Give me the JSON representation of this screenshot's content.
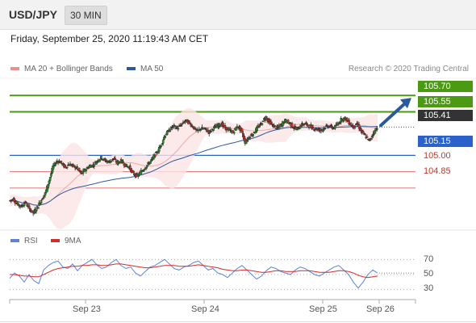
{
  "header": {
    "symbol": "USD/JPY",
    "timeframe": "30 MIN"
  },
  "timestamp": "Friday, September 25, 2020 11:19:43 AM CET",
  "legend": {
    "ma20_label": "MA 20 + Bollinger Bands",
    "ma50_label": "MA 50",
    "credit": "Research © 2020 Trading Central",
    "rsi_label": "RSI",
    "ma9_label": "9MA"
  },
  "colors": {
    "ma20": "#f08c8c",
    "ma50": "#2a5a9e",
    "resistance": "#4c9a13",
    "pivot": "#2a62c9",
    "support": "#e07070",
    "rsi": "#5b84d8",
    "ma9": "#d62b2b"
  },
  "chart_data": [
    {
      "type": "candlestick",
      "title": "USD/JPY",
      "timeframe": "30 MIN",
      "ylim": [
        104.5,
        105.85
      ],
      "x_ticks": [
        "Sep 23",
        "Sep 24",
        "Sep 25",
        "Sep 26"
      ],
      "levels": [
        {
          "value": 105.7,
          "label": "105.70",
          "kind": "resistance"
        },
        {
          "value": 105.55,
          "label": "105.55",
          "kind": "resistance"
        },
        {
          "value": 105.41,
          "label": "105.41",
          "kind": "last"
        },
        {
          "value": 105.15,
          "label": "105.15",
          "kind": "pivot"
        },
        {
          "value": 105.0,
          "label": "105.00",
          "kind": "support"
        },
        {
          "value": 104.85,
          "label": "104.85",
          "kind": "support"
        }
      ],
      "close_path": [
        104.73,
        104.75,
        104.7,
        104.68,
        104.72,
        104.66,
        104.62,
        104.67,
        104.74,
        104.8,
        104.92,
        105.05,
        105.1,
        105.08,
        105.04,
        105.07,
        105.05,
        105.03,
        104.98,
        105.02,
        105.05,
        105.06,
        105.1,
        105.13,
        105.1,
        105.09,
        105.12,
        105.08,
        105.1,
        105.06,
        105.04,
        104.98,
        104.96,
        105.0,
        105.04,
        105.08,
        105.13,
        105.18,
        105.25,
        105.34,
        105.38,
        105.42,
        105.4,
        105.43,
        105.47,
        105.45,
        105.41,
        105.37,
        105.4,
        105.39,
        105.36,
        105.4,
        105.42,
        105.44,
        105.4,
        105.38,
        105.36,
        105.42,
        105.38,
        105.27,
        105.32,
        105.35,
        105.4,
        105.44,
        105.5,
        105.46,
        105.42,
        105.4,
        105.43,
        105.47,
        105.45,
        105.41,
        105.39,
        105.43,
        105.44,
        105.42,
        105.4,
        105.39,
        105.38,
        105.41,
        105.42,
        105.4,
        105.43,
        105.48,
        105.49,
        105.45,
        105.41,
        105.44,
        105.37,
        105.33,
        105.28,
        105.35,
        105.41
      ],
      "forecast_arrow": {
        "from": 105.41,
        "to": 105.7
      }
    },
    {
      "type": "line",
      "title": "RSI",
      "ylim": [
        20,
        80
      ],
      "y_ticks": [
        70,
        50,
        30
      ],
      "series": [
        {
          "name": "RSI",
          "values": [
            45,
            52,
            48,
            40,
            50,
            42,
            38,
            56,
            62,
            66,
            68,
            60,
            58,
            64,
            55,
            62,
            66,
            70,
            63,
            58,
            60,
            66,
            70,
            62,
            58,
            60,
            52,
            48,
            54,
            60,
            62,
            66,
            70,
            64,
            58,
            56,
            60,
            62,
            66,
            68,
            62,
            56,
            58,
            52,
            50,
            46,
            52,
            58,
            62,
            56,
            50,
            44,
            48,
            55,
            60,
            58,
            54,
            52,
            50,
            56,
            60,
            58,
            54,
            50,
            48,
            52,
            56,
            60,
            62,
            56,
            50,
            40,
            32,
            40,
            50,
            56,
            52
          ]
        },
        {
          "name": "9MA",
          "values": [
            50,
            50,
            49,
            48,
            48,
            47,
            47,
            50,
            53,
            56,
            58,
            59,
            60,
            61,
            61,
            62,
            62,
            63,
            63,
            62,
            62,
            63,
            64,
            64,
            63,
            62,
            61,
            60,
            59,
            59,
            60,
            61,
            62,
            62,
            62,
            61,
            61,
            61,
            62,
            63,
            62,
            61,
            60,
            59,
            57,
            56,
            55,
            55,
            56,
            56,
            55,
            54,
            53,
            53,
            54,
            55,
            55,
            54,
            54,
            54,
            55,
            55,
            55,
            54,
            53,
            53,
            53,
            54,
            55,
            55,
            54,
            52,
            49,
            47,
            46,
            47,
            48
          ]
        }
      ]
    }
  ]
}
